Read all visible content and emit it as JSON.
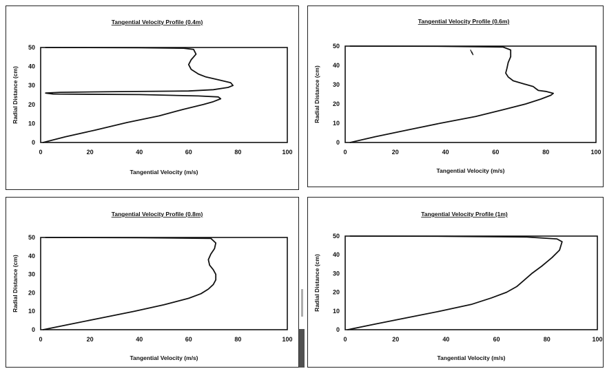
{
  "chart_data": [
    {
      "type": "line",
      "title": "Tangential Velocity Profile (0.4m)",
      "xlabel": "Tangential Velocity (m/s)",
      "ylabel": "Radial Distance (cm)",
      "xlim": [
        0,
        100
      ],
      "ylim": [
        0,
        50
      ],
      "xticks": [
        "0",
        "20",
        "40",
        "60",
        "80",
        "100"
      ],
      "yticks": [
        "0",
        "10",
        "20",
        "30",
        "40",
        "50"
      ],
      "grid": false,
      "series": [
        {
          "x": [
            1,
            10,
            22,
            35,
            48,
            58,
            66,
            70,
            72,
            73,
            72,
            64,
            40,
            5,
            2,
            8,
            35,
            60,
            70,
            76,
            78,
            77,
            72,
            67,
            64,
            61,
            60,
            61,
            63,
            62,
            58,
            40,
            2
          ],
          "y": [
            0,
            3,
            6.5,
            10.5,
            14,
            17.5,
            20,
            21.5,
            22.5,
            23,
            24,
            24.5,
            25.2,
            25.5,
            26,
            26.4,
            26.8,
            27.1,
            27.8,
            29,
            30,
            31.5,
            33,
            34.5,
            36,
            38.5,
            41,
            43.5,
            46.5,
            49,
            49.6,
            49.9,
            50
          ]
        }
      ]
    },
    {
      "type": "line",
      "title": "Tangential Velocity Profile (0.6m)",
      "xlabel": "Tangential Velocity (m/s)",
      "ylabel": "Radial Distance (cm)",
      "xlim": [
        0,
        100
      ],
      "ylim": [
        0,
        50
      ],
      "xticks": [
        "0",
        "20",
        "40",
        "60",
        "80",
        "100"
      ],
      "yticks": [
        "0",
        "10",
        "20",
        "30",
        "40",
        "50"
      ],
      "grid": false,
      "series": [
        {
          "x": [
            2,
            12,
            25,
            38,
            52,
            63,
            72,
            78,
            82,
            83,
            80,
            77,
            76,
            75,
            71,
            67,
            65,
            64,
            64.5,
            65,
            66,
            66,
            63,
            40,
            2
          ],
          "y": [
            0,
            3,
            6.5,
            10,
            13.5,
            17,
            20,
            22.5,
            24.5,
            25.5,
            26.5,
            27,
            28,
            29,
            30.5,
            32,
            34,
            36,
            38.5,
            41.5,
            44.5,
            48,
            49.5,
            49.9,
            50
          ]
        },
        {
          "x": [
            50,
            50.5,
            51,
            50.5
          ],
          "y": [
            48,
            46.5,
            45.5,
            47
          ]
        }
      ]
    },
    {
      "type": "line",
      "title": "Tangential Velocity Profile (0.8m)",
      "xlabel": "Tangential Velocity (m/s)",
      "ylabel": "Radial Distance (cm)",
      "xlim": [
        0,
        100
      ],
      "ylim": [
        0,
        50
      ],
      "xticks": [
        "0",
        "20",
        "40",
        "60",
        "80",
        "100"
      ],
      "yticks": [
        "0",
        "10",
        "20",
        "30",
        "40",
        "50"
      ],
      "grid": false,
      "series": [
        {
          "x": [
            1,
            12,
            25,
            38,
            50,
            60,
            65,
            68,
            70,
            71,
            71,
            70,
            68.5,
            68,
            69,
            70.5,
            71,
            69,
            40,
            2
          ],
          "y": [
            0,
            3,
            6.5,
            10,
            13.5,
            17,
            19.5,
            22,
            24.5,
            27,
            30,
            32.5,
            35,
            38,
            41,
            44,
            47,
            49.5,
            49.9,
            50
          ]
        }
      ]
    },
    {
      "type": "line",
      "title": "Tangential Velocity Profile (1m)",
      "xlabel": "Tangential Velocity (m/s)",
      "ylabel": "Radial Distance (cm)",
      "xlim": [
        0,
        100
      ],
      "ylim": [
        0,
        50
      ],
      "xticks": [
        "0",
        "20",
        "40",
        "60",
        "80",
        "100"
      ],
      "yticks": [
        "0",
        "10",
        "20",
        "30",
        "40",
        "50"
      ],
      "grid": false,
      "series": [
        {
          "x": [
            1,
            12,
            25,
            38,
            50,
            58,
            64,
            68,
            71,
            74,
            78,
            82,
            85,
            86,
            84,
            72,
            40,
            2
          ],
          "y": [
            0,
            3,
            6.5,
            10,
            13.5,
            17,
            20,
            23,
            26.5,
            30,
            34,
            38.5,
            42.5,
            47,
            48.5,
            49.5,
            49.9,
            50
          ]
        }
      ]
    }
  ]
}
